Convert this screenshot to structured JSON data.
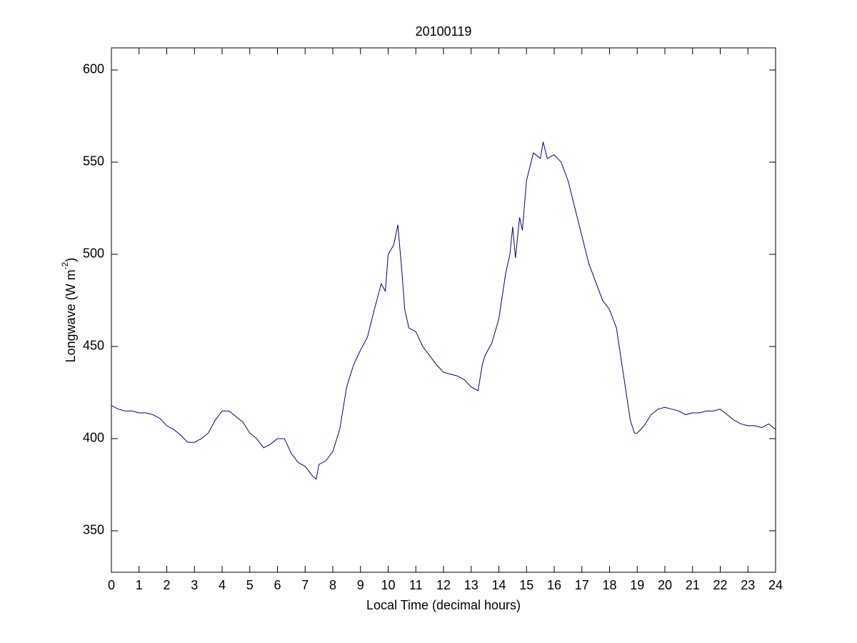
{
  "chart_data": {
    "type": "line",
    "title": "20100119",
    "xlabel": "Local Time (decimal hours)",
    "ylabel": {
      "text": "Longwave (W m",
      "superscript": "-2",
      "suffix": ")"
    },
    "xlim": [
      0,
      24
    ],
    "xticks": [
      0,
      1,
      2,
      3,
      4,
      5,
      6,
      7,
      8,
      9,
      10,
      11,
      12,
      13,
      14,
      15,
      16,
      17,
      18,
      19,
      20,
      21,
      22,
      23,
      24
    ],
    "ylim": [
      327.5,
      612
    ],
    "yticks": [
      350,
      400,
      450,
      500,
      550,
      600
    ],
    "grid": false,
    "x": [
      0,
      0.25,
      0.5,
      0.75,
      1,
      1.25,
      1.5,
      1.75,
      2,
      2.25,
      2.5,
      2.75,
      3,
      3.25,
      3.5,
      3.75,
      4,
      4.25,
      4.5,
      4.75,
      5,
      5.25,
      5.5,
      5.75,
      6,
      6.25,
      6.5,
      6.75,
      7,
      7.25,
      7.4,
      7.5,
      7.75,
      8,
      8.25,
      8.5,
      8.75,
      9,
      9.25,
      9.5,
      9.75,
      9.9,
      10,
      10.2,
      10.35,
      10.5,
      10.6,
      10.75,
      11,
      11.25,
      11.5,
      11.75,
      12,
      12.25,
      12.5,
      12.75,
      13,
      13.25,
      13.4,
      13.5,
      13.75,
      14,
      14.25,
      14.4,
      14.5,
      14.6,
      14.75,
      14.85,
      15,
      15.25,
      15.5,
      15.6,
      15.75,
      16,
      16.25,
      16.5,
      16.75,
      17,
      17.25,
      17.5,
      17.75,
      18,
      18.25,
      18.5,
      18.75,
      18.9,
      19,
      19.25,
      19.5,
      19.75,
      20,
      20.25,
      20.5,
      20.75,
      21,
      21.25,
      21.5,
      21.75,
      22,
      22.25,
      22.5,
      22.75,
      23,
      23.25,
      23.5,
      23.75,
      24
    ],
    "series": [
      {
        "color": "#00008b",
        "values": [
          418,
          416,
          415,
          415,
          414,
          414,
          413,
          411,
          407,
          405,
          402,
          398,
          398,
          400,
          403,
          410,
          415,
          415,
          412,
          409,
          403,
          400,
          395,
          397,
          400,
          400,
          392,
          387,
          385,
          380,
          378,
          386,
          388,
          393,
          405,
          428,
          440,
          448,
          455,
          470,
          484,
          480,
          500,
          505,
          516,
          490,
          470,
          460,
          458,
          450,
          445,
          440,
          436,
          435,
          434,
          432,
          428,
          426,
          440,
          445,
          452,
          465,
          490,
          500,
          515,
          498,
          520,
          513,
          540,
          555,
          552,
          561,
          552,
          554,
          550,
          540,
          525,
          510,
          495,
          485,
          475,
          470,
          460,
          435,
          410,
          403,
          403,
          407,
          413,
          416,
          417,
          416,
          415,
          413,
          414,
          414,
          415,
          415,
          416,
          413,
          410,
          408,
          407,
          407,
          406,
          408,
          405
        ]
      }
    ]
  }
}
